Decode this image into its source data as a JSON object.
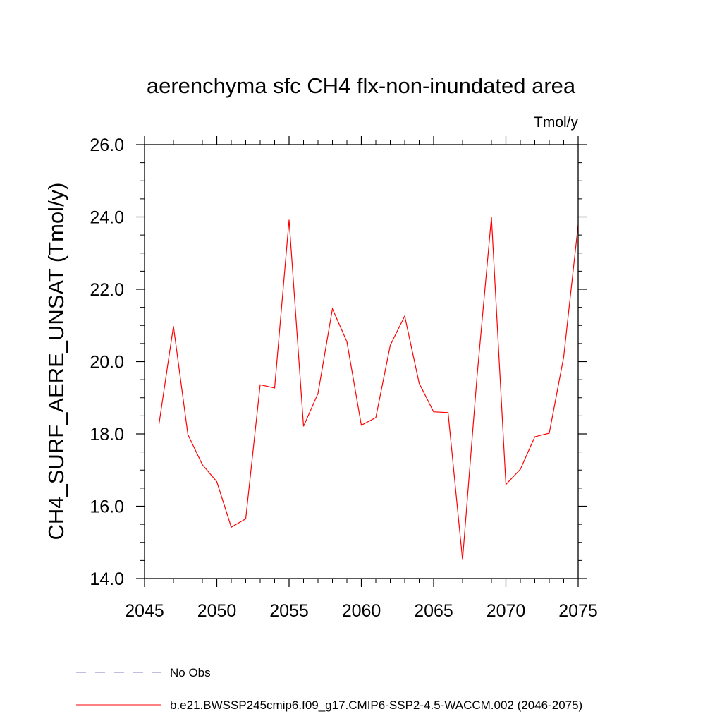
{
  "chart_data": {
    "type": "line",
    "title": "aerenchyma sfc CH4 flx-non-inundated area",
    "units_label": "Tmol/y",
    "xlabel": "",
    "ylabel": "CH4_SURF_AERE_UNSAT  (Tmol/y)",
    "xlim": [
      2045,
      2075
    ],
    "ylim": [
      14.0,
      26.0
    ],
    "x_ticks": [
      2045,
      2050,
      2055,
      2060,
      2065,
      2070,
      2075
    ],
    "x_tick_labels": [
      "2045",
      "2050",
      "2055",
      "2060",
      "2065",
      "2070",
      "2075"
    ],
    "y_ticks": [
      14,
      16,
      18,
      20,
      22,
      24,
      26
    ],
    "y_tick_labels": [
      "14.0",
      "16.0",
      "18.0",
      "20.0",
      "22.0",
      "24.0",
      "26.0"
    ],
    "grid": false,
    "legend_position": "bottom",
    "series": [
      {
        "name": "No Obs",
        "color": "#7f7fbf",
        "style": "dashed",
        "x": [],
        "y": []
      },
      {
        "name": "b.e21.BWSSP245cmip6.f09_g17.CMIP6-SSP2-4.5-WACCM.002 (2046-2075)",
        "color": "#ff0000",
        "style": "solid",
        "x": [
          2046,
          2047,
          2048,
          2049,
          2050,
          2051,
          2052,
          2053,
          2054,
          2055,
          2056,
          2057,
          2058,
          2059,
          2060,
          2061,
          2062,
          2063,
          2064,
          2065,
          2066,
          2067,
          2068,
          2069,
          2070,
          2071,
          2072,
          2073,
          2074,
          2075
        ],
        "y": [
          18.27,
          20.98,
          17.98,
          17.15,
          16.68,
          15.42,
          15.65,
          19.36,
          19.27,
          23.92,
          18.21,
          19.12,
          21.46,
          20.55,
          18.24,
          18.45,
          20.45,
          21.26,
          19.4,
          18.61,
          18.59,
          14.52,
          19.57,
          23.99,
          16.6,
          17.02,
          17.92,
          18.02,
          20.13,
          23.78
        ]
      }
    ]
  }
}
